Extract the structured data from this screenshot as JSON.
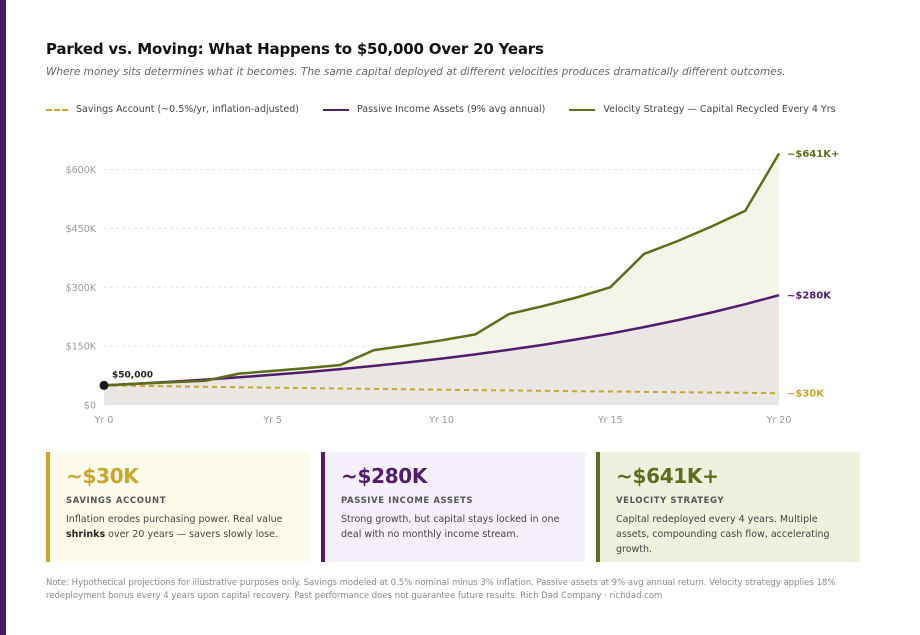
{
  "header": {
    "title": "Parked vs. Moving: What Happens to $50,000 Over 20 Years",
    "subtitle": "Where money sits determines what it becomes. The same capital deployed at different velocities produces dramatically different outcomes."
  },
  "legend": {
    "savings": "Savings Account (~0.5%/yr, inflation-adjusted)",
    "passive": "Passive Income Assets (9% avg annual)",
    "velocity": "Velocity Strategy — Capital Recycled Every 4 Yrs"
  },
  "colors": {
    "savings": "#c9a52c",
    "passive": "#521c6e",
    "velocity": "#5c6e1a",
    "accent": "#4a1a6b"
  },
  "chart_data": {
    "type": "line",
    "x": [
      0,
      1,
      2,
      3,
      4,
      5,
      6,
      7,
      8,
      9,
      10,
      11,
      12,
      13,
      14,
      15,
      16,
      17,
      18,
      19,
      20
    ],
    "x_ticks": [
      0,
      5,
      10,
      15,
      20
    ],
    "x_tick_labels": [
      "Yr 0",
      "Yr 5",
      "Yr 10",
      "Yr 15",
      "Yr 20"
    ],
    "y_ticks": [
      0,
      150000,
      300000,
      450000,
      600000
    ],
    "y_tick_labels": [
      "$0",
      "$150K",
      "$300K",
      "$450K",
      "$600K"
    ],
    "ylim": [
      0,
      650000
    ],
    "xlim": [
      0,
      20
    ],
    "grid": true,
    "series": [
      {
        "name": "Savings Account (~0.5%/yr, inflation-adjusted)",
        "key": "savings",
        "values": [
          50000,
          48800,
          47600,
          46400,
          45300,
          44200,
          43100,
          42000,
          41000,
          40000,
          39000,
          38000,
          37100,
          36200,
          35300,
          34400,
          33500,
          32700,
          31900,
          31000,
          30000
        ]
      },
      {
        "name": "Passive Income Assets (9% avg annual)",
        "key": "passive",
        "values": [
          50000,
          54500,
          59400,
          64800,
          70600,
          76900,
          83900,
          91400,
          99600,
          108600,
          118400,
          129000,
          140600,
          153300,
          167100,
          182100,
          198500,
          216400,
          235800,
          257000,
          280000
        ]
      },
      {
        "name": "Velocity Strategy — Capital Recycled Every 4 Yrs",
        "key": "velocity",
        "values": [
          50000,
          54000,
          58000,
          62000,
          80000,
          87000,
          94000,
          102000,
          140000,
          152000,
          165000,
          180000,
          232000,
          252000,
          274000,
          300000,
          385000,
          418000,
          455000,
          495000,
          641000
        ]
      }
    ],
    "start_label": "$50,000",
    "end_labels": {
      "savings": "~$30K",
      "passive": "~$280K",
      "velocity": "~$641K+"
    }
  },
  "cards": [
    {
      "value": "~$30K",
      "label": "SAVINGS ACCOUNT",
      "desc_a": "Inflation erodes purchasing power. Real value ",
      "desc_bold": "shrinks",
      "desc_b": " over 20 years — savers slowly lose."
    },
    {
      "value": "~$280K",
      "label": "PASSIVE INCOME ASSETS",
      "desc": "Strong growth, but capital stays locked in one deal with no monthly income stream."
    },
    {
      "value": "~$641K+",
      "label": "VELOCITY STRATEGY",
      "desc": "Capital redeployed every 4 years. Multiple assets, compounding cash flow, accelerating growth."
    }
  ],
  "footnote": "Note: Hypothetical projections for illustrative purposes only. Savings modeled at 0.5% nominal minus 3% inflation. Passive assets at 9% avg annual return. Velocity strategy applies 18% redeployment bonus every 4 years upon capital recovery. Past performance does not guarantee future results. Rich Dad Company · richdad.com"
}
